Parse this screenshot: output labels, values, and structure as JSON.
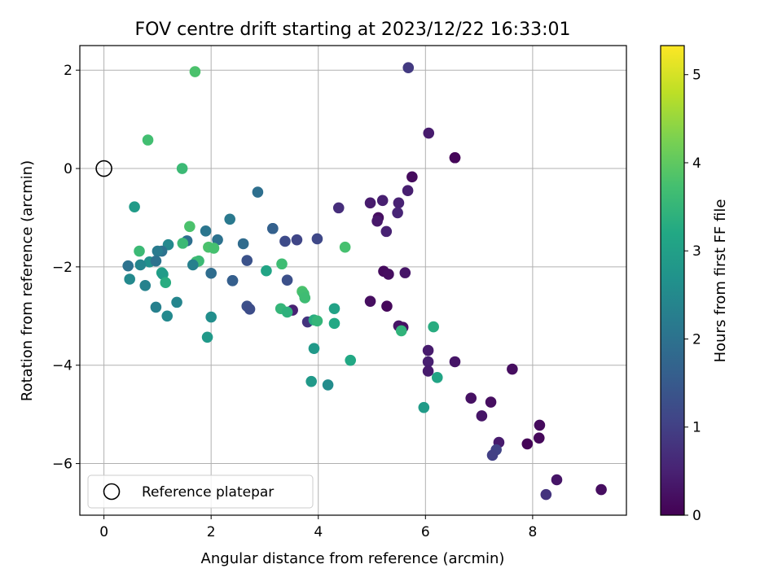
{
  "chart_data": {
    "type": "scatter",
    "title": "FOV centre drift starting at 2023/12/22 16:33:01",
    "xlabel": "Angular distance from reference (arcmin)",
    "ylabel": "Rotation from reference (arcmin)",
    "xlim": [
      -0.45,
      9.75
    ],
    "ylim": [
      -7.05,
      2.5
    ],
    "xticks": [
      "0",
      "2",
      "4",
      "6",
      "8"
    ],
    "yticks": [
      "−6",
      "−4",
      "−2",
      "0",
      "2"
    ],
    "grid": true,
    "legend": {
      "placement": "lower-left",
      "entries": [
        "Reference platepar"
      ]
    },
    "colorbar": {
      "label": "Hours from first FF file",
      "range": [
        0,
        5.33
      ],
      "ticks": [
        "0",
        "1",
        "2",
        "3",
        "4",
        "5"
      ],
      "colormap": "viridis"
    },
    "reference": {
      "x": 0,
      "y": 0
    },
    "points": [
      [
        5.68,
        2.05,
        0.9
      ],
      [
        1.7,
        1.97,
        3.8
      ],
      [
        6.06,
        0.72,
        0.4
      ],
      [
        0.82,
        0.58,
        3.7
      ],
      [
        6.55,
        0.22,
        0.05
      ],
      [
        1.46,
        0.0,
        3.6
      ],
      [
        5.75,
        -0.17,
        0.15
      ],
      [
        6.55,
        0.22,
        0.08
      ],
      [
        2.87,
        -0.48,
        1.95
      ],
      [
        5.67,
        -0.45,
        0.45
      ],
      [
        5.2,
        -0.65,
        0.45
      ],
      [
        4.97,
        -0.7,
        0.4
      ],
      [
        5.5,
        -0.7,
        0.5
      ],
      [
        4.38,
        -0.8,
        0.7
      ],
      [
        0.57,
        -0.78,
        2.9
      ],
      [
        5.12,
        -1.0,
        0.2
      ],
      [
        5.48,
        -0.9,
        0.55
      ],
      [
        5.1,
        -1.07,
        0.35
      ],
      [
        2.35,
        -1.03,
        2.15
      ],
      [
        1.6,
        -1.18,
        3.8
      ],
      [
        3.15,
        -1.22,
        1.6
      ],
      [
        3.15,
        -1.22,
        1.65
      ],
      [
        1.9,
        -1.27,
        2.1
      ],
      [
        5.27,
        -1.28,
        0.5
      ],
      [
        2.12,
        -1.45,
        2.0
      ],
      [
        3.38,
        -1.48,
        1.2
      ],
      [
        3.6,
        -1.45,
        1.1
      ],
      [
        3.98,
        -1.43,
        1.15
      ],
      [
        1.55,
        -1.47,
        1.95
      ],
      [
        2.6,
        -1.53,
        1.85
      ],
      [
        1.47,
        -1.52,
        3.6
      ],
      [
        1.2,
        -1.55,
        2.5
      ],
      [
        4.5,
        -1.6,
        3.75
      ],
      [
        1.95,
        -1.6,
        3.8
      ],
      [
        2.05,
        -1.62,
        3.75
      ],
      [
        1.08,
        -1.68,
        2.0
      ],
      [
        0.66,
        -1.68,
        3.6
      ],
      [
        1.0,
        -1.68,
        2.2
      ],
      [
        1.72,
        -1.9,
        3.7
      ],
      [
        1.77,
        -1.88,
        3.6
      ],
      [
        0.85,
        -1.9,
        2.65
      ],
      [
        0.97,
        -1.88,
        2.0
      ],
      [
        2.67,
        -1.87,
        1.35
      ],
      [
        1.66,
        -1.96,
        2.3
      ],
      [
        0.45,
        -1.98,
        2.0
      ],
      [
        0.68,
        -1.96,
        2.4
      ],
      [
        3.32,
        -1.94,
        3.65
      ],
      [
        3.03,
        -2.08,
        3.1
      ],
      [
        5.22,
        -2.09,
        0.15
      ],
      [
        5.31,
        -2.15,
        0.2
      ],
      [
        5.62,
        -2.12,
        0.3
      ],
      [
        1.08,
        -2.12,
        3.05
      ],
      [
        1.1,
        -2.15,
        2.9
      ],
      [
        2.0,
        -2.13,
        1.9
      ],
      [
        0.48,
        -2.25,
        2.5
      ],
      [
        2.4,
        -2.28,
        1.5
      ],
      [
        2.4,
        -2.28,
        1.6
      ],
      [
        3.42,
        -2.27,
        1.3
      ],
      [
        0.77,
        -2.38,
        2.35
      ],
      [
        1.15,
        -2.32,
        3.3
      ],
      [
        3.7,
        -2.5,
        3.8
      ],
      [
        3.73,
        -2.55,
        3.7
      ],
      [
        3.75,
        -2.63,
        3.65
      ],
      [
        4.97,
        -2.7,
        0.2
      ],
      [
        1.36,
        -2.72,
        2.4
      ],
      [
        0.97,
        -2.82,
        2.3
      ],
      [
        2.67,
        -2.8,
        1.3
      ],
      [
        2.72,
        -2.86,
        1.25
      ],
      [
        3.52,
        -2.88,
        0.5
      ],
      [
        3.3,
        -2.85,
        3.5
      ],
      [
        3.42,
        -2.92,
        3.4
      ],
      [
        4.3,
        -2.85,
        3.05
      ],
      [
        5.28,
        -2.8,
        0.1
      ],
      [
        1.18,
        -3.0,
        2.5
      ],
      [
        2.0,
        -3.02,
        2.6
      ],
      [
        3.8,
        -3.12,
        0.8
      ],
      [
        3.92,
        -3.08,
        3.3
      ],
      [
        3.98,
        -3.1,
        3.5
      ],
      [
        4.3,
        -3.15,
        3.2
      ],
      [
        5.5,
        -3.2,
        0.3
      ],
      [
        5.58,
        -3.23,
        0.25
      ],
      [
        5.55,
        -3.3,
        3.45
      ],
      [
        6.15,
        -3.22,
        3.3
      ],
      [
        1.93,
        -3.43,
        2.85
      ],
      [
        3.92,
        -3.66,
        2.85
      ],
      [
        6.05,
        -3.7,
        0.4
      ],
      [
        6.05,
        -3.93,
        0.45
      ],
      [
        6.55,
        -3.93,
        0.3
      ],
      [
        4.6,
        -3.9,
        3.2
      ],
      [
        6.05,
        -4.12,
        0.4
      ],
      [
        7.62,
        -4.08,
        0.2
      ],
      [
        6.22,
        -4.25,
        3.1
      ],
      [
        3.87,
        -4.33,
        2.85
      ],
      [
        4.18,
        -4.4,
        2.55
      ],
      [
        6.85,
        -4.67,
        0.25
      ],
      [
        7.22,
        -4.75,
        0.2
      ],
      [
        5.97,
        -4.86,
        2.9
      ],
      [
        7.05,
        -5.03,
        0.3
      ],
      [
        8.13,
        -5.22,
        0.15
      ],
      [
        8.12,
        -5.48,
        0.1
      ],
      [
        7.37,
        -5.57,
        0.4
      ],
      [
        7.9,
        -5.6,
        0.05
      ],
      [
        7.32,
        -5.72,
        1.05
      ],
      [
        7.25,
        -5.83,
        1.0
      ],
      [
        8.45,
        -6.33,
        0.3
      ],
      [
        9.28,
        -6.53,
        0.2
      ],
      [
        8.25,
        -6.63,
        0.8
      ]
    ]
  }
}
